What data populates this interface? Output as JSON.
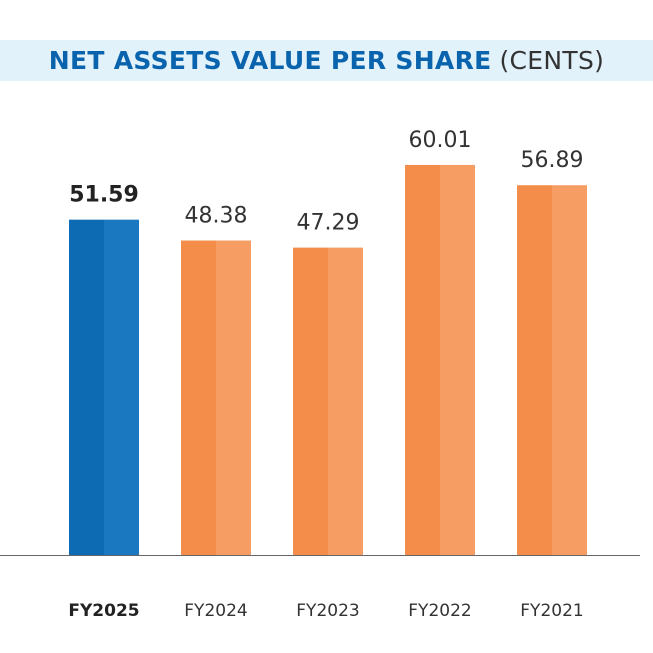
{
  "chart_data": {
    "type": "bar",
    "title": "NET ASSETS VALUE PER SHARE",
    "subtitle": "(CENTS)",
    "categories": [
      "FY2025",
      "FY2024",
      "FY2023",
      "FY2022",
      "FY2021"
    ],
    "values": [
      51.59,
      48.38,
      47.29,
      60.01,
      56.89
    ],
    "value_labels": [
      "51.59",
      "48.38",
      "47.29",
      "60.01",
      "56.89"
    ],
    "highlight_index": 0,
    "colors": {
      "highlight": "#0c6bb3",
      "highlight_light": "#1a78c0",
      "normal": "#f58d4a",
      "normal_light": "#f69d63",
      "title": "#0a64ad",
      "band": "#e2f2fb"
    },
    "xlabel": "",
    "ylabel": "",
    "ylim": [
      0,
      65
    ],
    "grid": false
  }
}
